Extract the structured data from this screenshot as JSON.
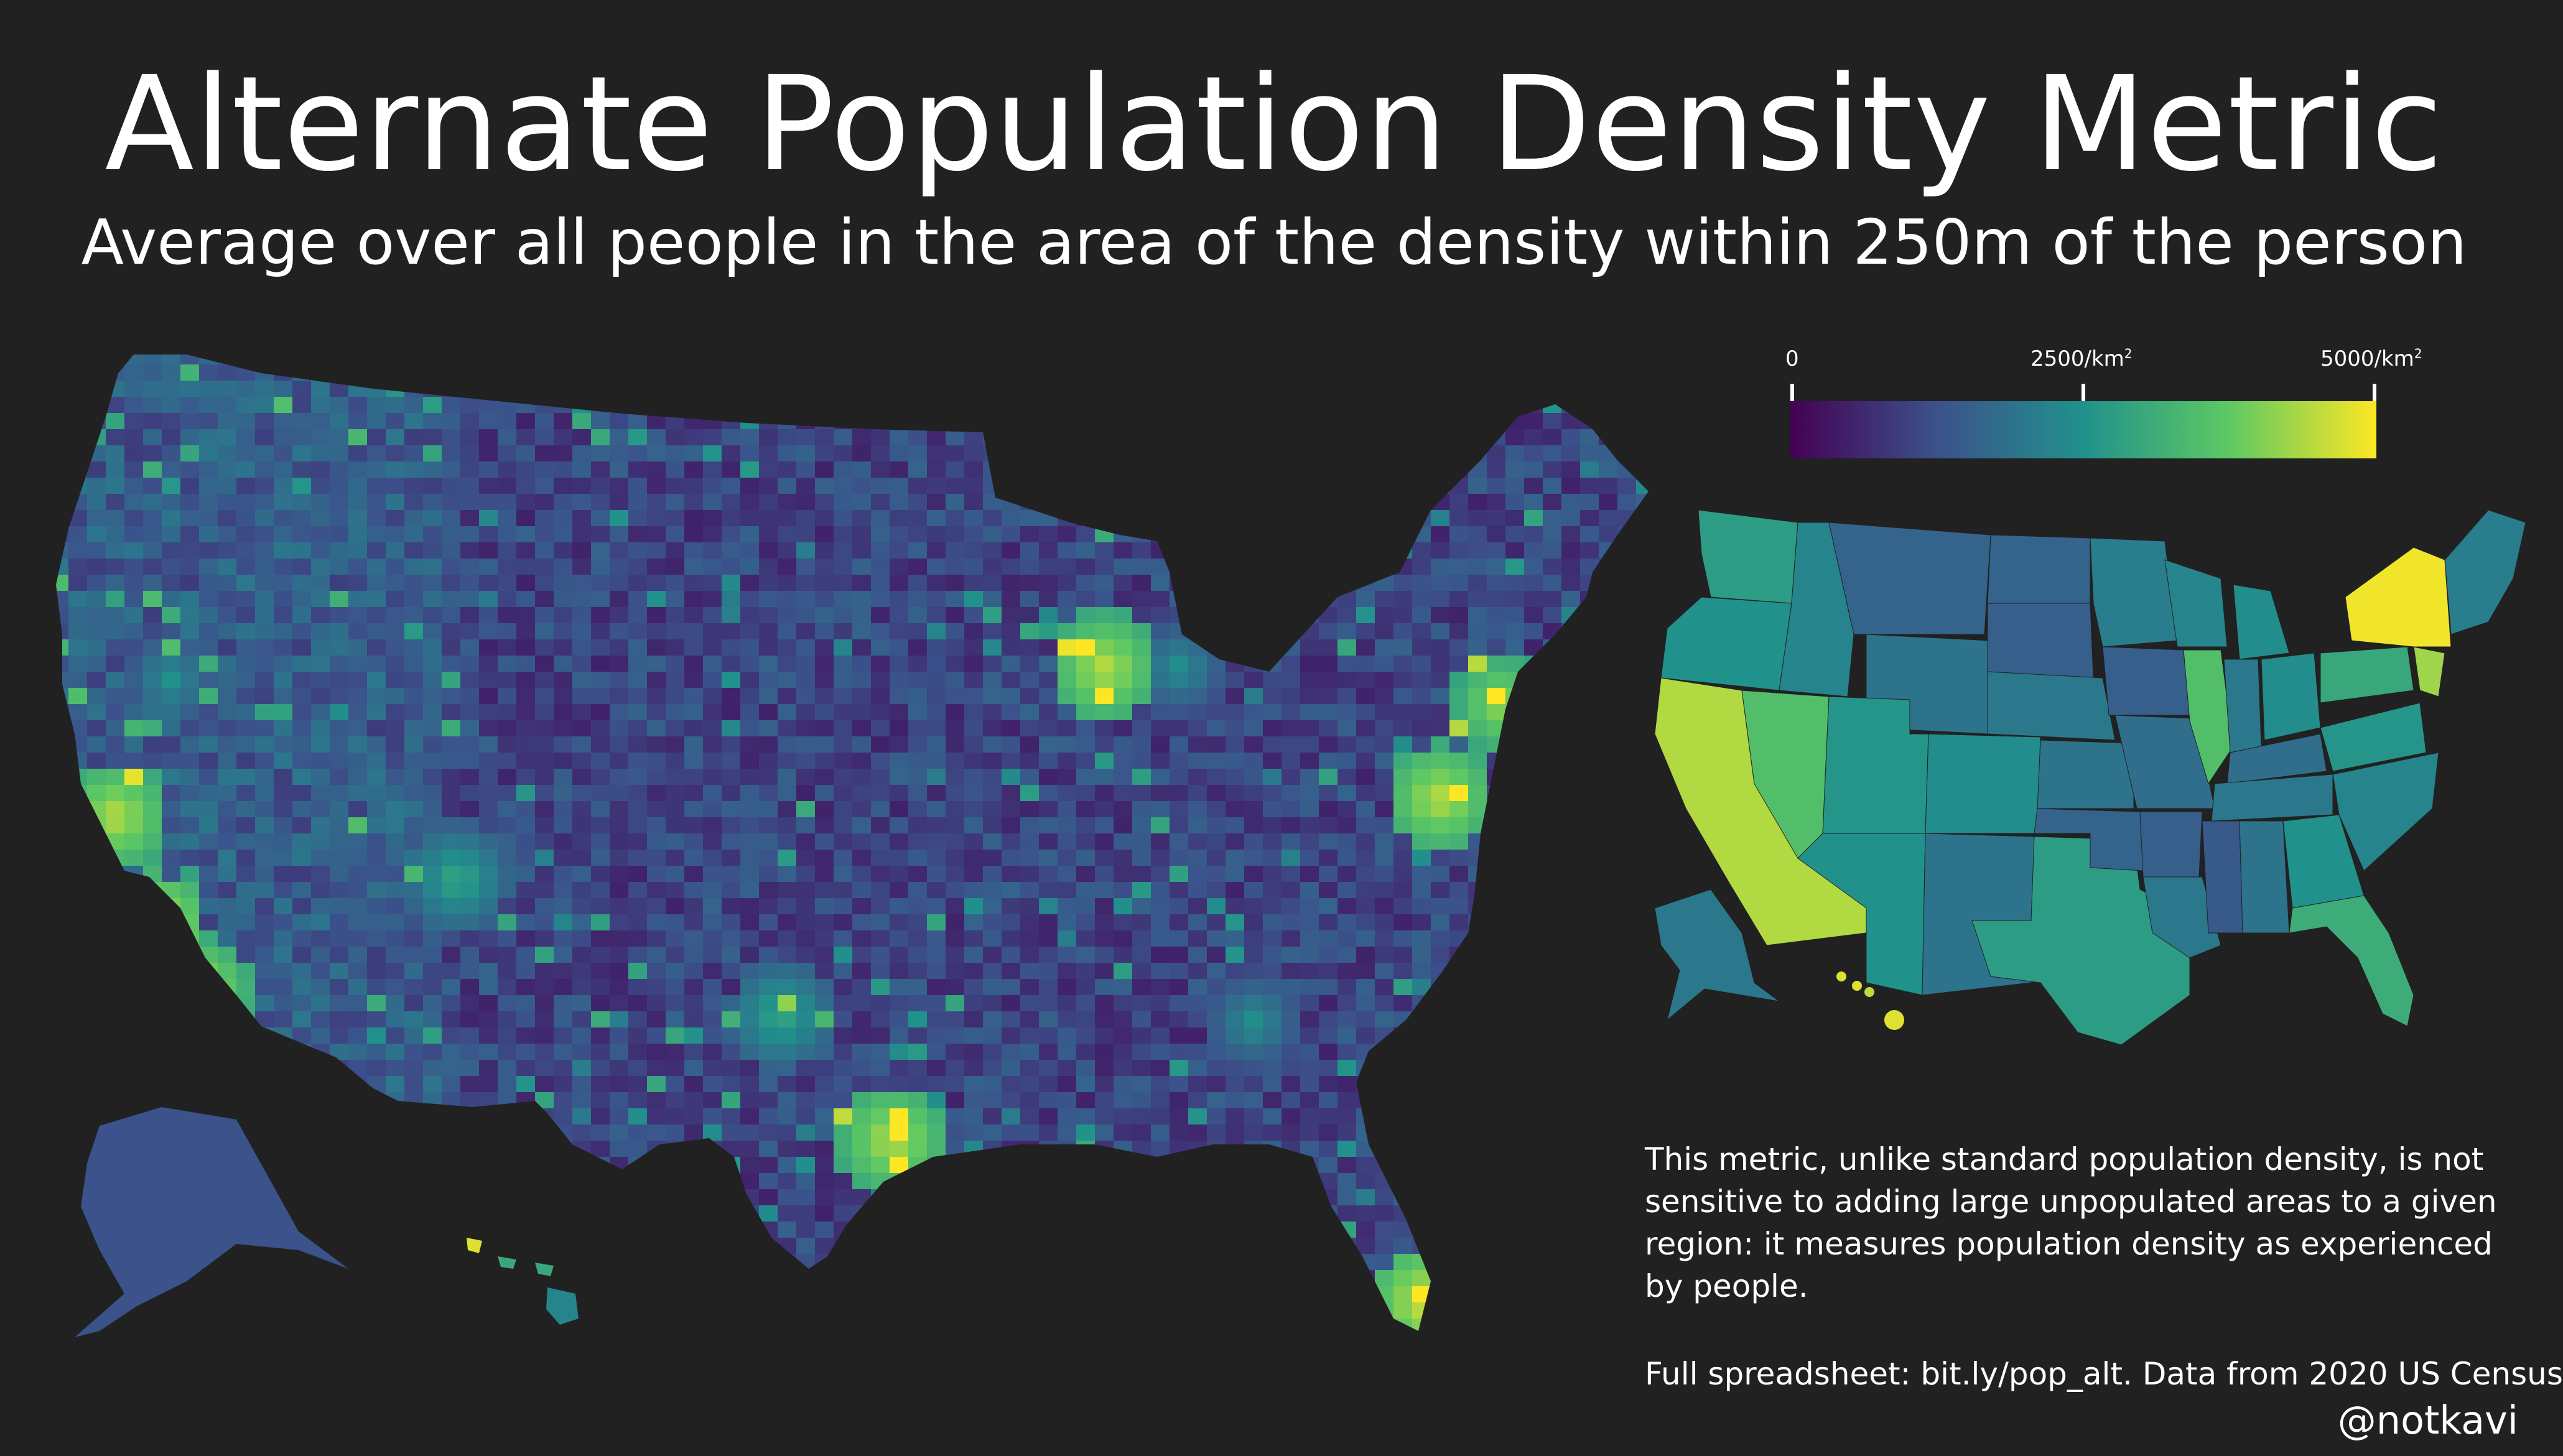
{
  "title": "Alternate Population Density Metric",
  "subtitle": "Average over all people in the area of the density within 250m of the person",
  "legend": {
    "min_label": "0",
    "mid_label": "2500/km",
    "max_label": "5000/km",
    "unit_exponent": "2",
    "colors": [
      "#440154",
      "#3b528b",
      "#21918c",
      "#5ec962",
      "#fde725"
    ]
  },
  "note": "This metric, unlike standard population density, is not sensitive to adding large unpopulated areas to a given region: it measures population density as experienced by people.",
  "source": "Full spreadsheet: bit.ly/pop_alt. Data from 2020 US Census",
  "author": "@notkavi",
  "colors": {
    "background": "#212121",
    "text": "#ffffff"
  }
}
